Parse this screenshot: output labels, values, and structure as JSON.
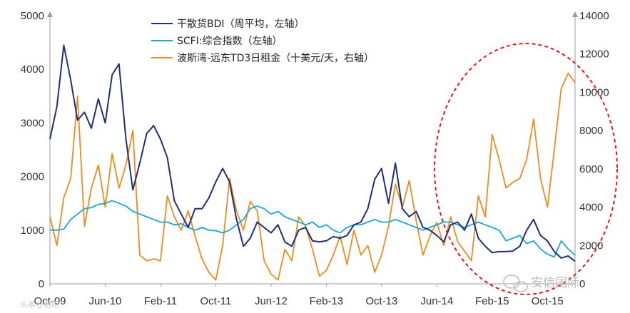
{
  "chart_data": {
    "type": "line",
    "title": "",
    "left_axis": {
      "ylim": [
        0,
        5000
      ],
      "ticks": [
        "0",
        "1000",
        "2000",
        "3000",
        "4000",
        "5000"
      ]
    },
    "right_axis": {
      "ylim": [
        0,
        14000
      ],
      "ticks": [
        "0",
        "2000",
        "4000",
        "6000",
        "8000",
        "10000",
        "12000",
        "14000"
      ]
    },
    "x_ticks": [
      "Oct-09",
      "Jun-10",
      "Feb-11",
      "Oct-11",
      "Jun-12",
      "Feb-13",
      "Oct-13",
      "Jun-14",
      "Feb-15",
      "Oct-15"
    ],
    "x_range": [
      "2009-10",
      "2016-02"
    ],
    "grid": false,
    "legend_position": "top-center",
    "series": [
      {
        "name": "干散货BDI（周平均，左轴）",
        "axis": "left",
        "color": "#1f2f7a",
        "points": [
          [
            "2009-10",
            2700
          ],
          [
            "2009-11",
            3300
          ],
          [
            "2009-12",
            4450
          ],
          [
            "2010-01",
            3800
          ],
          [
            "2010-02",
            3050
          ],
          [
            "2010-03",
            3200
          ],
          [
            "2010-04",
            2900
          ],
          [
            "2010-05",
            3450
          ],
          [
            "2010-06",
            3000
          ],
          [
            "2010-07",
            3900
          ],
          [
            "2010-08",
            4100
          ],
          [
            "2010-09",
            2700
          ],
          [
            "2010-10",
            1750
          ],
          [
            "2010-11",
            2250
          ],
          [
            "2010-12",
            2800
          ],
          [
            "2011-01",
            2950
          ],
          [
            "2011-02",
            2700
          ],
          [
            "2011-03",
            2350
          ],
          [
            "2011-04",
            1550
          ],
          [
            "2011-05",
            1300
          ],
          [
            "2011-06",
            1050
          ],
          [
            "2011-07",
            1400
          ],
          [
            "2011-08",
            1400
          ],
          [
            "2011-09",
            1600
          ],
          [
            "2011-10",
            1900
          ],
          [
            "2011-11",
            2150
          ],
          [
            "2011-12",
            1900
          ],
          [
            "2012-01",
            1200
          ],
          [
            "2012-02",
            700
          ],
          [
            "2012-03",
            850
          ],
          [
            "2012-04",
            1150
          ],
          [
            "2012-05",
            1050
          ],
          [
            "2012-06",
            950
          ],
          [
            "2012-07",
            1100
          ],
          [
            "2012-08",
            780
          ],
          [
            "2012-09",
            700
          ],
          [
            "2012-10",
            1000
          ],
          [
            "2012-11",
            1050
          ],
          [
            "2012-12",
            800
          ],
          [
            "2013-01",
            780
          ],
          [
            "2013-02",
            800
          ],
          [
            "2013-03",
            880
          ],
          [
            "2013-04",
            850
          ],
          [
            "2013-05",
            900
          ],
          [
            "2013-06",
            1100
          ],
          [
            "2013-07",
            1150
          ],
          [
            "2013-08",
            1400
          ],
          [
            "2013-09",
            1950
          ],
          [
            "2013-10",
            2150
          ],
          [
            "2013-11",
            1500
          ],
          [
            "2013-12",
            2250
          ],
          [
            "2014-01",
            1400
          ],
          [
            "2014-02",
            1250
          ],
          [
            "2014-03",
            1350
          ],
          [
            "2014-04",
            1050
          ],
          [
            "2014-05",
            1000
          ],
          [
            "2014-06",
            900
          ],
          [
            "2014-07",
            780
          ],
          [
            "2014-08",
            1100
          ],
          [
            "2014-09",
            1150
          ],
          [
            "2014-10",
            1000
          ],
          [
            "2014-11",
            1300
          ],
          [
            "2014-12",
            850
          ],
          [
            "2015-01",
            700
          ],
          [
            "2015-02",
            580
          ],
          [
            "2015-03",
            600
          ],
          [
            "2015-04",
            600
          ],
          [
            "2015-05",
            610
          ],
          [
            "2015-06",
            700
          ],
          [
            "2015-07",
            1000
          ],
          [
            "2015-08",
            1200
          ],
          [
            "2015-09",
            900
          ],
          [
            "2015-10",
            800
          ],
          [
            "2015-11",
            600
          ],
          [
            "2015-12",
            480
          ],
          [
            "2016-01",
            520
          ],
          [
            "2016-02",
            420
          ]
        ]
      },
      {
        "name": "SCFI:综合指数（左轴）",
        "axis": "left",
        "color": "#1aa6d6",
        "points": [
          [
            "2009-10",
            1000
          ],
          [
            "2009-11",
            1000
          ],
          [
            "2009-12",
            1020
          ],
          [
            "2010-01",
            1200
          ],
          [
            "2010-02",
            1300
          ],
          [
            "2010-03",
            1400
          ],
          [
            "2010-04",
            1420
          ],
          [
            "2010-05",
            1480
          ],
          [
            "2010-06",
            1500
          ],
          [
            "2010-07",
            1550
          ],
          [
            "2010-08",
            1500
          ],
          [
            "2010-09",
            1450
          ],
          [
            "2010-10",
            1350
          ],
          [
            "2010-11",
            1300
          ],
          [
            "2010-12",
            1250
          ],
          [
            "2011-01",
            1200
          ],
          [
            "2011-02",
            1150
          ],
          [
            "2011-03",
            1150
          ],
          [
            "2011-04",
            1100
          ],
          [
            "2011-05",
            1120
          ],
          [
            "2011-06",
            1050
          ],
          [
            "2011-07",
            1000
          ],
          [
            "2011-08",
            1050
          ],
          [
            "2011-09",
            1000
          ],
          [
            "2011-10",
            990
          ],
          [
            "2011-11",
            950
          ],
          [
            "2011-12",
            1000
          ],
          [
            "2012-01",
            1100
          ],
          [
            "2012-02",
            1200
          ],
          [
            "2012-03",
            1400
          ],
          [
            "2012-04",
            1450
          ],
          [
            "2012-05",
            1400
          ],
          [
            "2012-06",
            1300
          ],
          [
            "2012-07",
            1350
          ],
          [
            "2012-08",
            1250
          ],
          [
            "2012-09",
            1200
          ],
          [
            "2012-10",
            1150
          ],
          [
            "2012-11",
            1100
          ],
          [
            "2012-12",
            1150
          ],
          [
            "2013-01",
            1050
          ],
          [
            "2013-02",
            1100
          ],
          [
            "2013-03",
            1000
          ],
          [
            "2013-04",
            950
          ],
          [
            "2013-05",
            1050
          ],
          [
            "2013-06",
            1100
          ],
          [
            "2013-07",
            1100
          ],
          [
            "2013-08",
            1150
          ],
          [
            "2013-09",
            1200
          ],
          [
            "2013-10",
            1150
          ],
          [
            "2013-11",
            1150
          ],
          [
            "2013-12",
            1200
          ],
          [
            "2014-01",
            1150
          ],
          [
            "2014-02",
            1100
          ],
          [
            "2014-03",
            1050
          ],
          [
            "2014-04",
            1000
          ],
          [
            "2014-05",
            1050
          ],
          [
            "2014-06",
            1100
          ],
          [
            "2014-07",
            1150
          ],
          [
            "2014-08",
            1150
          ],
          [
            "2014-09",
            1100
          ],
          [
            "2014-10",
            1050
          ],
          [
            "2014-11",
            1100
          ],
          [
            "2014-12",
            1150
          ],
          [
            "2015-01",
            1100
          ],
          [
            "2015-02",
            1050
          ],
          [
            "2015-03",
            1000
          ],
          [
            "2015-04",
            800
          ],
          [
            "2015-05",
            850
          ],
          [
            "2015-06",
            900
          ],
          [
            "2015-07",
            750
          ],
          [
            "2015-08",
            800
          ],
          [
            "2015-09",
            650
          ],
          [
            "2015-10",
            550
          ],
          [
            "2015-11",
            500
          ],
          [
            "2015-12",
            800
          ],
          [
            "2016-01",
            650
          ],
          [
            "2016-02",
            530
          ]
        ]
      },
      {
        "name": "波斯湾-远东TD3日租金（十美元/天，右轴）",
        "axis": "right",
        "color": "#f08a1e",
        "points": [
          [
            "2009-10",
            3500
          ],
          [
            "2009-11",
            2000
          ],
          [
            "2009-12",
            4500
          ],
          [
            "2010-01",
            5500
          ],
          [
            "2010-02",
            9800
          ],
          [
            "2010-03",
            3000
          ],
          [
            "2010-04",
            5000
          ],
          [
            "2010-05",
            6200
          ],
          [
            "2010-06",
            4000
          ],
          [
            "2010-07",
            6800
          ],
          [
            "2010-08",
            5000
          ],
          [
            "2010-09",
            6200
          ],
          [
            "2010-10",
            8000
          ],
          [
            "2010-11",
            1500
          ],
          [
            "2010-12",
            1200
          ],
          [
            "2011-01",
            1300
          ],
          [
            "2011-02",
            1200
          ],
          [
            "2011-03",
            4600
          ],
          [
            "2011-04",
            3500
          ],
          [
            "2011-05",
            2800
          ],
          [
            "2011-06",
            3800
          ],
          [
            "2011-07",
            2500
          ],
          [
            "2011-08",
            1300
          ],
          [
            "2011-09",
            600
          ],
          [
            "2011-10",
            200
          ],
          [
            "2011-11",
            2000
          ],
          [
            "2011-12",
            5500
          ],
          [
            "2012-01",
            3800
          ],
          [
            "2012-02",
            2800
          ],
          [
            "2012-03",
            4300
          ],
          [
            "2012-04",
            3800
          ],
          [
            "2012-05",
            1200
          ],
          [
            "2012-06",
            500
          ],
          [
            "2012-07",
            200
          ],
          [
            "2012-08",
            1800
          ],
          [
            "2012-09",
            1200
          ],
          [
            "2012-10",
            3500
          ],
          [
            "2012-11",
            3000
          ],
          [
            "2012-12",
            1800
          ],
          [
            "2013-01",
            400
          ],
          [
            "2013-02",
            700
          ],
          [
            "2013-03",
            1500
          ],
          [
            "2013-04",
            2500
          ],
          [
            "2013-05",
            1000
          ],
          [
            "2013-06",
            2800
          ],
          [
            "2013-07",
            1500
          ],
          [
            "2013-08",
            2000
          ],
          [
            "2013-09",
            600
          ],
          [
            "2013-10",
            1500
          ],
          [
            "2013-11",
            3000
          ],
          [
            "2013-12",
            5200
          ],
          [
            "2014-01",
            4000
          ],
          [
            "2014-02",
            5400
          ],
          [
            "2014-03",
            3300
          ],
          [
            "2014-04",
            1500
          ],
          [
            "2014-05",
            2500
          ],
          [
            "2014-06",
            3200
          ],
          [
            "2014-07",
            2000
          ],
          [
            "2014-08",
            3500
          ],
          [
            "2014-09",
            2200
          ],
          [
            "2014-10",
            1700
          ],
          [
            "2014-11",
            1200
          ],
          [
            "2014-12",
            4600
          ],
          [
            "2015-01",
            3500
          ],
          [
            "2015-02",
            7800
          ],
          [
            "2015-03",
            6500
          ],
          [
            "2015-04",
            5000
          ],
          [
            "2015-05",
            5300
          ],
          [
            "2015-06",
            5500
          ],
          [
            "2015-07",
            6500
          ],
          [
            "2015-08",
            8600
          ],
          [
            "2015-09",
            5500
          ],
          [
            "2015-10",
            4000
          ],
          [
            "2015-11",
            7000
          ],
          [
            "2015-12",
            10200
          ],
          [
            "2016-01",
            11000
          ],
          [
            "2016-02",
            10500
          ]
        ]
      }
    ]
  },
  "annotation": {
    "type": "dashed-ellipse",
    "color": "#e0191b"
  },
  "watermark": {
    "brand": "安信国际",
    "corner_text": "头条@泡吧"
  }
}
